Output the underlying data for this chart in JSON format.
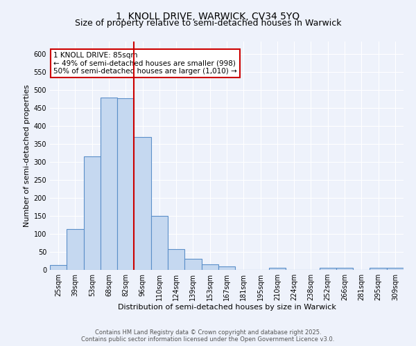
{
  "title": "1, KNOLL DRIVE, WARWICK, CV34 5YQ",
  "subtitle": "Size of property relative to semi-detached houses in Warwick",
  "xlabel": "Distribution of semi-detached houses by size in Warwick",
  "ylabel": "Number of semi-detached properties",
  "categories": [
    "25sqm",
    "39sqm",
    "53sqm",
    "68sqm",
    "82sqm",
    "96sqm",
    "110sqm",
    "124sqm",
    "139sqm",
    "153sqm",
    "167sqm",
    "181sqm",
    "195sqm",
    "210sqm",
    "224sqm",
    "238sqm",
    "252sqm",
    "266sqm",
    "281sqm",
    "295sqm",
    "309sqm"
  ],
  "values": [
    13,
    113,
    315,
    480,
    478,
    370,
    150,
    58,
    30,
    15,
    10,
    0,
    0,
    5,
    0,
    0,
    6,
    5,
    0,
    5,
    5
  ],
  "bar_color": "#c5d8f0",
  "bar_edge_color": "#5b8fc9",
  "property_line_color": "#cc0000",
  "annotation_text": "1 KNOLL DRIVE: 85sqm\n← 49% of semi-detached houses are smaller (998)\n50% of semi-detached houses are larger (1,010) →",
  "annotation_box_color": "#ffffff",
  "annotation_box_edge_color": "#cc0000",
  "ylim": [
    0,
    635
  ],
  "yticks": [
    0,
    50,
    100,
    150,
    200,
    250,
    300,
    350,
    400,
    450,
    500,
    550,
    600
  ],
  "footnote1": "Contains HM Land Registry data © Crown copyright and database right 2025.",
  "footnote2": "Contains public sector information licensed under the Open Government Licence v3.0.",
  "background_color": "#eef2fb",
  "grid_color": "#ffffff",
  "title_fontsize": 10,
  "axis_label_fontsize": 8,
  "tick_fontsize": 7,
  "annotation_fontsize": 7.5
}
